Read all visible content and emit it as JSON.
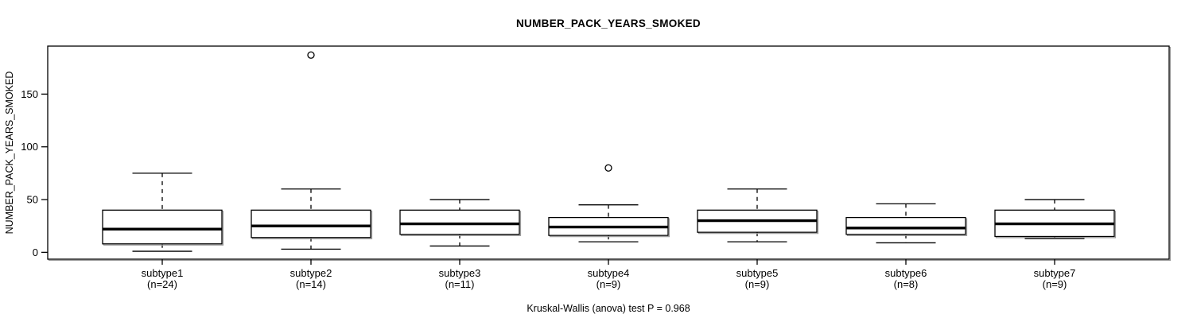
{
  "title": "NUMBER_PACK_YEARS_SMOKED",
  "chart_data": {
    "type": "boxplot",
    "title": "NUMBER_PACK_YEARS_SMOKED",
    "xlabel": "",
    "ylabel": "NUMBER_PACK_YEARS_SMOKED",
    "footer_annotation": "Kruskal-Wallis (anova) test P = 0.968",
    "grid": false,
    "legend": "none",
    "y_ticks": [
      0,
      50,
      100,
      150
    ],
    "ylim": [
      -6.5,
      195.5
    ],
    "categories": [
      "subtype1",
      "subtype2",
      "subtype3",
      "subtype4",
      "subtype5",
      "subtype6",
      "subtype7"
    ],
    "category_sublabels": [
      "(n=24)",
      "(n=14)",
      "(n=11)",
      "(n=9)",
      "(n=9)",
      "(n=8)",
      "(n=9)"
    ],
    "sample_sizes": [
      24,
      14,
      11,
      9,
      9,
      8,
      9
    ],
    "series": [
      {
        "name": "subtype1",
        "n": 24,
        "whisker_low": 1,
        "q1": 8,
        "median": 22,
        "q3": 40,
        "whisker_high": 75,
        "outliers": []
      },
      {
        "name": "subtype2",
        "n": 14,
        "whisker_low": 3,
        "q1": 14,
        "median": 25,
        "q3": 40,
        "whisker_high": 60,
        "outliers": [
          187
        ]
      },
      {
        "name": "subtype3",
        "n": 11,
        "whisker_low": 6,
        "q1": 17,
        "median": 27,
        "q3": 40,
        "whisker_high": 50,
        "outliers": []
      },
      {
        "name": "subtype4",
        "n": 9,
        "whisker_low": 10,
        "q1": 16,
        "median": 24,
        "q3": 33,
        "whisker_high": 45,
        "outliers": [
          80
        ]
      },
      {
        "name": "subtype5",
        "n": 9,
        "whisker_low": 10,
        "q1": 19,
        "median": 30,
        "q3": 40,
        "whisker_high": 60,
        "outliers": []
      },
      {
        "name": "subtype6",
        "n": 8,
        "whisker_low": 9,
        "q1": 17,
        "median": 23,
        "q3": 33,
        "whisker_high": 46,
        "outliers": []
      },
      {
        "name": "subtype7",
        "n": 9,
        "whisker_low": 13,
        "q1": 15,
        "median": 27,
        "q3": 40,
        "whisker_high": 50,
        "outliers": []
      }
    ],
    "colors": {
      "line": "#000000",
      "box_fill": "#ffffff",
      "box_shadow": "#9a9a9a",
      "background": "#ffffff"
    }
  }
}
